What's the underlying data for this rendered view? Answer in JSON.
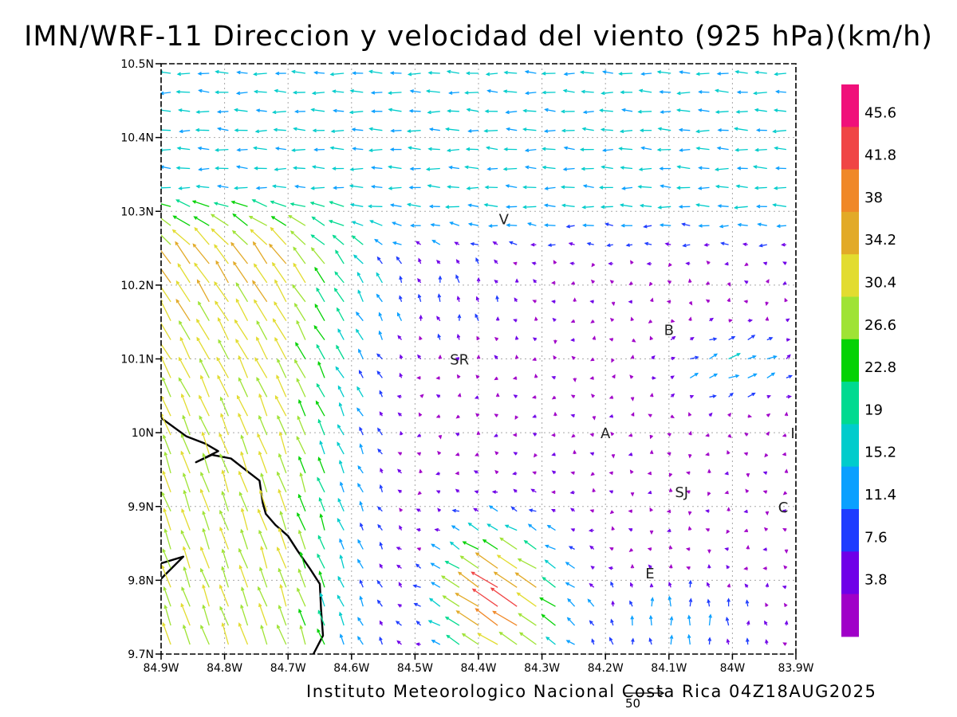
{
  "title": "IMN/WRF-11 Direccion y velocidad del viento (925 hPa)(km/h)",
  "footer": "Instituto Meteorologico Nacional Costa Rica 04Z18AUG2025",
  "reference_vector": {
    "label": "50",
    "value": 50
  },
  "map": {
    "lon_range": [
      -84.9,
      -83.9
    ],
    "lat_range": [
      9.7,
      10.5
    ],
    "x_ticks": [
      "84.9W",
      "84.8W",
      "84.7W",
      "84.6W",
      "84.5W",
      "84.4W",
      "84.3W",
      "84.2W",
      "84.1W",
      "84W",
      "83.9W"
    ],
    "y_ticks": [
      "9.7N",
      "9.8N",
      "9.9N",
      "10N",
      "10.1N",
      "10.2N",
      "10.3N",
      "10.4N",
      "10.5N"
    ],
    "grid": "dotted",
    "cities": [
      {
        "label": "V",
        "lon": -84.36,
        "lat": 10.29
      },
      {
        "label": "SR",
        "lon": -84.43,
        "lat": 10.1
      },
      {
        "label": "B",
        "lon": -84.1,
        "lat": 10.14
      },
      {
        "label": "A",
        "lon": -84.2,
        "lat": 10.0
      },
      {
        "label": "SJ",
        "lon": -84.08,
        "lat": 9.92
      },
      {
        "label": "C",
        "lon": -83.92,
        "lat": 9.9
      },
      {
        "label": "E",
        "lon": -84.13,
        "lat": 9.81
      },
      {
        "label": "I",
        "lon": -83.905,
        "lat": 10.0
      }
    ],
    "coastline": [
      [
        [
          -84.9,
          10.02
        ],
        [
          -84.86,
          9.995
        ],
        [
          -84.83,
          9.985
        ],
        [
          -84.81,
          9.975
        ],
        [
          -84.845,
          9.96
        ],
        [
          -84.82,
          9.97
        ],
        [
          -84.79,
          9.965
        ],
        [
          -84.775,
          9.955
        ],
        [
          -84.745,
          9.935
        ],
        [
          -84.74,
          9.905
        ],
        [
          -84.735,
          9.89
        ],
        [
          -84.72,
          9.875
        ],
        [
          -84.7,
          9.86
        ],
        [
          -84.685,
          9.84
        ],
        [
          -84.665,
          9.815
        ],
        [
          -84.65,
          9.795
        ],
        [
          -84.648,
          9.76
        ],
        [
          -84.645,
          9.725
        ],
        [
          -84.66,
          9.7
        ]
      ],
      [
        [
          -84.9,
          9.823
        ],
        [
          -84.865,
          9.832
        ],
        [
          -84.9,
          9.802
        ]
      ]
    ]
  },
  "colorbar": {
    "labels": [
      "45.6",
      "41.8",
      "38",
      "34.2",
      "30.4",
      "26.6",
      "22.8",
      "19",
      "15.2",
      "11.4",
      "7.6",
      "3.8"
    ],
    "colors": [
      "#f0107a",
      "#f04545",
      "#f08828",
      "#e2aa28",
      "#e2dc30",
      "#9fe335",
      "#05d205",
      "#00da90",
      "#00cccc",
      "#0aa0ff",
      "#1e3cff",
      "#6f00e8",
      "#a000c8"
    ]
  },
  "chart_data": {
    "type": "wind_vector_field",
    "units": "km/h",
    "level": "925 hPa",
    "regions": [
      {
        "region": "northern plains (lat >= 10.25)",
        "direction": "from east",
        "speed_range": [
          1,
          18
        ]
      },
      {
        "region": "west and southwest slopes",
        "direction": "from south-southeast",
        "speed_range": [
          15,
          35
        ]
      },
      {
        "region": "south-central (84.5W-84.3W, 9.7N-9.9N)",
        "direction": "from southeast",
        "speed_range": [
          30,
          48
        ]
      },
      {
        "region": "central valley and east",
        "direction": "variable",
        "speed_range": [
          1,
          12
        ]
      }
    ]
  }
}
